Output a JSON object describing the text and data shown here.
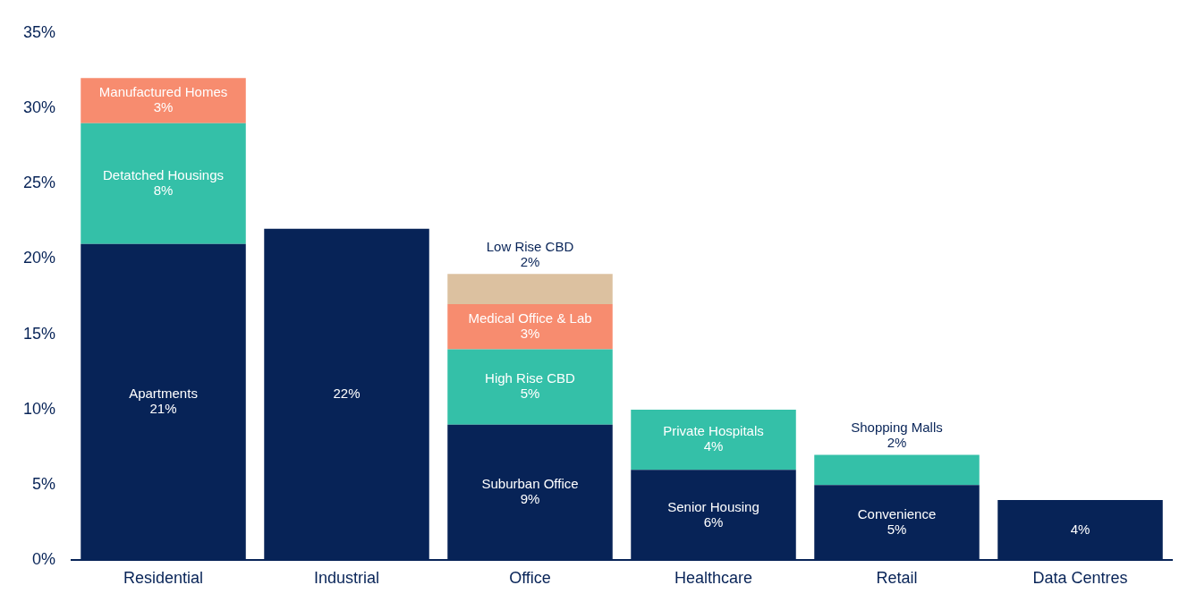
{
  "chart_data": {
    "type": "bar",
    "stacked": true,
    "categories": [
      "Residential",
      "Industrial",
      "Office",
      "Healthcare",
      "Retail",
      "Data Centres"
    ],
    "series": [
      {
        "color": "#072357",
        "values": [
          21,
          22,
          9,
          6,
          5,
          4
        ],
        "value_labels": [
          "Apartments\n21%",
          "22%",
          "Suburban Office\n9%",
          "Senior Housing\n6%",
          "Convenience\n5%",
          "4%"
        ]
      },
      {
        "color": "#34c0a8",
        "values": [
          8,
          null,
          5,
          4,
          2,
          null
        ],
        "value_labels": [
          "Detatched Housings\n8%",
          null,
          "High Rise CBD\n5%",
          "Private Hospitals\n4%",
          "Shopping Malls\n2%",
          null
        ]
      },
      {
        "color": "#f78c6f",
        "values": [
          3,
          null,
          3,
          null,
          null,
          null
        ],
        "value_labels": [
          "Manufactured Homes\n3%",
          null,
          "Medical Office & Lab\n3%",
          null,
          null,
          null
        ]
      },
      {
        "color": "#dcc1a0",
        "values": [
          null,
          null,
          2,
          null,
          null,
          null
        ],
        "value_labels": [
          null,
          null,
          "Low Rise CBD\n2%",
          null,
          null,
          null
        ]
      }
    ],
    "ylim": [
      0,
      35
    ],
    "yticks": [
      {
        "value": 0,
        "label": "0%"
      },
      {
        "value": 5,
        "label": "5%"
      },
      {
        "value": 10,
        "label": "10%"
      },
      {
        "value": 15,
        "label": "15%"
      },
      {
        "value": 20,
        "label": "20%"
      },
      {
        "value": 25,
        "label": "25%"
      },
      {
        "value": 30,
        "label": "30%"
      },
      {
        "value": 35,
        "label": "35%"
      }
    ],
    "grid": false,
    "legend": false
  }
}
